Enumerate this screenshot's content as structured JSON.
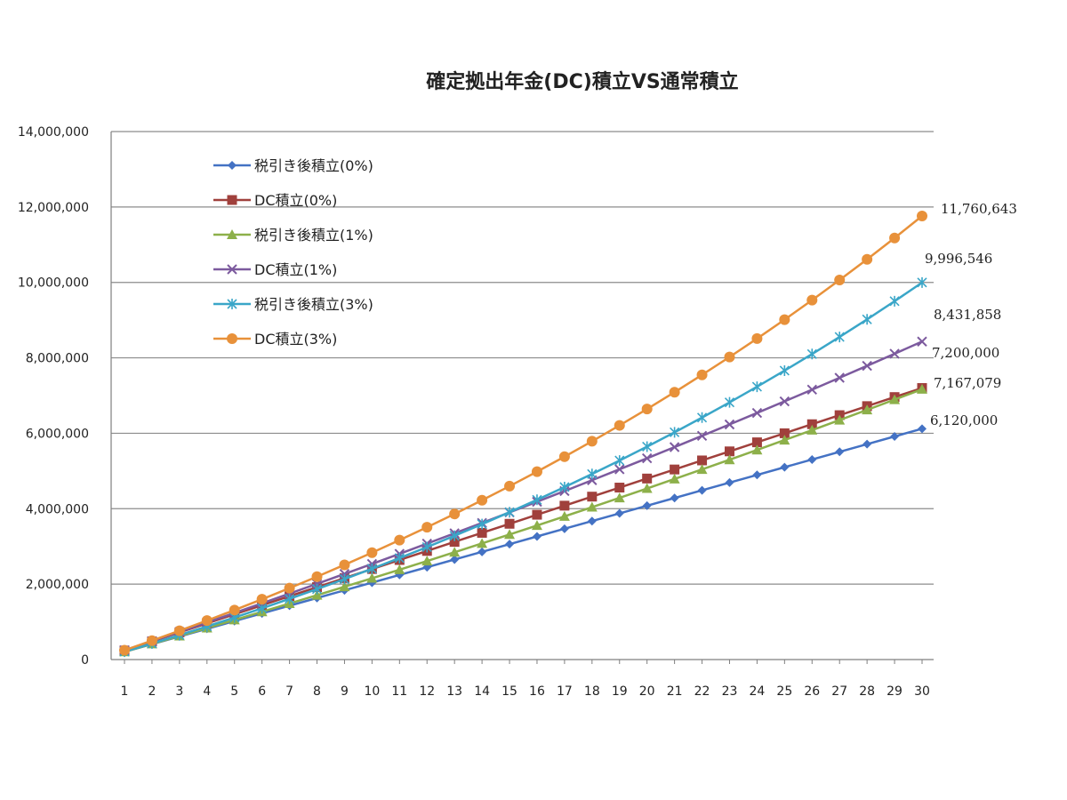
{
  "chart_data": {
    "type": "line",
    "title": "確定拠出年金(DC)積立VS通常積立",
    "xlabel": "",
    "ylabel": "",
    "x": [
      1,
      2,
      3,
      4,
      5,
      6,
      7,
      8,
      9,
      10,
      11,
      12,
      13,
      14,
      15,
      16,
      17,
      18,
      19,
      20,
      21,
      22,
      23,
      24,
      25,
      26,
      27,
      28,
      29,
      30
    ],
    "ylim": [
      0,
      14000000
    ],
    "yticks": [
      "0",
      "2,000,000",
      "4,000,000",
      "6,000,000",
      "8,000,000",
      "10,000,000",
      "12,000,000",
      "14,000,000"
    ],
    "grid": true,
    "legend_position": "top-left",
    "series": [
      {
        "name": "税引き後積立(0%)",
        "color": "#4472C4",
        "marker": "diamond",
        "end_label": "6,120,000",
        "values": [
          204000,
          408000,
          612000,
          816000,
          1020000,
          1224000,
          1428000,
          1632000,
          1836000,
          2040000,
          2244000,
          2448000,
          2652000,
          2856000,
          3060000,
          3264000,
          3468000,
          3672000,
          3876000,
          4080000,
          4284000,
          4488000,
          4692000,
          4896000,
          5100000,
          5304000,
          5508000,
          5712000,
          5916000,
          6120000
        ]
      },
      {
        "name": "DC積立(0%)",
        "color": "#A0403C",
        "marker": "square",
        "end_label": "7,200,000",
        "values": [
          240000,
          480000,
          720000,
          960000,
          1200000,
          1440000,
          1680000,
          1920000,
          2160000,
          2400000,
          2640000,
          2880000,
          3120000,
          3360000,
          3600000,
          3840000,
          4080000,
          4320000,
          4560000,
          4800000,
          5040000,
          5280000,
          5520000,
          5760000,
          6000000,
          6240000,
          6480000,
          6720000,
          6960000,
          7200000
        ]
      },
      {
        "name": "税引き後積立(1%)",
        "color": "#8DB04A",
        "marker": "triangle",
        "end_label": "7,167,079",
        "values": [
          206040,
          414121,
          624302,
          836585,
          1050991,
          1267541,
          1486256,
          1707159,
          1930271,
          2155614,
          2383210,
          2613082,
          2845253,
          3079746,
          3316583,
          3555789,
          3797387,
          4041401,
          4287855,
          4536774,
          4788182,
          5042104,
          5298565,
          5557591,
          5819207,
          6083439,
          6350313,
          6619856,
          6892095,
          7167079
        ]
      },
      {
        "name": "DC積立(1%)",
        "color": "#7C5A9E",
        "marker": "x",
        "end_label": "8,431,858",
        "values": [
          242400,
          487224,
          734496,
          984241,
          1236484,
          1491249,
          1748561,
          2008447,
          2270931,
          2536041,
          2803801,
          3074239,
          3347381,
          3623255,
          3901888,
          4183307,
          4467540,
          4754615,
          5044561,
          5337407,
          5633181,
          5931913,
          6233632,
          6538368,
          6846152,
          7157014,
          7470984,
          7788094,
          8108375,
          8431858
        ]
      },
      {
        "name": "税引き後積立(3%)",
        "color": "#3AA6C8",
        "marker": "star",
        "end_label": "9,996,546",
        "values": [
          210120,
          426544,
          649461,
          879065,
          1115557,
          1359144,
          1610038,
          1868460,
          2134634,
          2408793,
          2691177,
          2982032,
          3281613,
          3590182,
          3908008,
          4235368,
          4572549,
          4919845,
          5277560,
          5646007,
          6025507,
          6416392,
          6819004,
          7233694,
          7660825,
          8100770,
          8553913,
          9020650,
          9501390,
          9996546
        ]
      },
      {
        "name": "DC積立(3%)",
        "color": "#E8913A",
        "marker": "circle",
        "end_label": "11,760,643",
        "values": [
          247200,
          501816,
          764070,
          1034192,
          1312418,
          1598990,
          1894160,
          2198185,
          2511330,
          2833870,
          3166086,
          3508268,
          3860716,
          4223737,
          4597649,
          4982778,
          5379461,
          5788045,
          6208886,
          6642352,
          7088823,
          7548687,
          8022347,
          8510218,
          9012724,
          9530306,
          10063415,
          10612517,
          11178093,
          11760643
        ]
      }
    ]
  }
}
